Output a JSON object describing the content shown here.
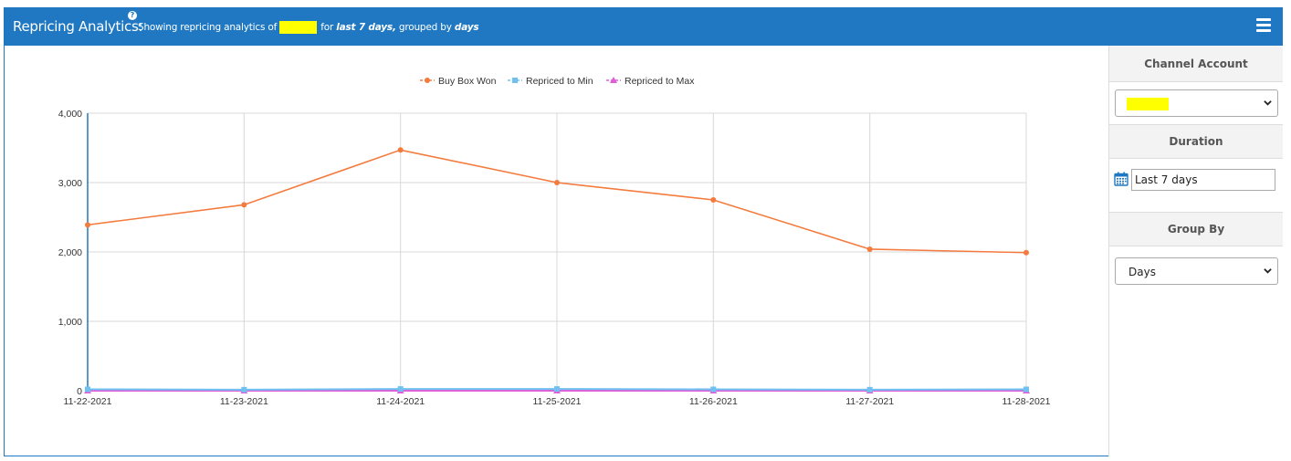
{
  "header": {
    "title": "Repricing Analytics:",
    "help_icon": "?",
    "sub_prefix": "Showing repricing analytics of",
    "sub_for": "for",
    "duration_em": "last 7 days,",
    "sub_grouped": "grouped by",
    "group_em": "days"
  },
  "sidebar": {
    "channel_account_label": "Channel Account",
    "channel_account_value": "",
    "duration_label": "Duration",
    "duration_value": "Last 7 days",
    "group_by_label": "Group By",
    "group_by_value": "Days"
  },
  "colors": {
    "header_bg": "#1f78c1",
    "buy_box_won": "#f47b3e",
    "repriced_min": "#6ec1f0",
    "repriced_max": "#e05cd8",
    "highlight": "#ffff00"
  },
  "chart_data": {
    "type": "line",
    "title": "",
    "xlabel": "",
    "ylabel": "",
    "legend_position": "top-center",
    "grid": true,
    "ylim": [
      0,
      4000
    ],
    "y_ticks": [
      "0",
      "1,000",
      "2,000",
      "3,000",
      "4,000"
    ],
    "y_tick_values": [
      0,
      1000,
      2000,
      3000,
      4000
    ],
    "categories": [
      "11-22-2021",
      "11-23-2021",
      "11-24-2021",
      "11-25-2021",
      "11-26-2021",
      "11-27-2021",
      "11-28-2021"
    ],
    "series": [
      {
        "name": "Buy Box Won",
        "marker": "circle",
        "color": "#f47b3e",
        "values": [
          2390,
          2680,
          3470,
          3000,
          2750,
          2040,
          1990
        ]
      },
      {
        "name": "Repriced to Min",
        "marker": "square",
        "color": "#6ec1f0",
        "values": [
          20,
          15,
          25,
          25,
          20,
          15,
          20
        ]
      },
      {
        "name": "Repriced to Max",
        "marker": "triangle",
        "color": "#e05cd8",
        "values": [
          0,
          0,
          0,
          0,
          0,
          0,
          0
        ]
      }
    ]
  }
}
